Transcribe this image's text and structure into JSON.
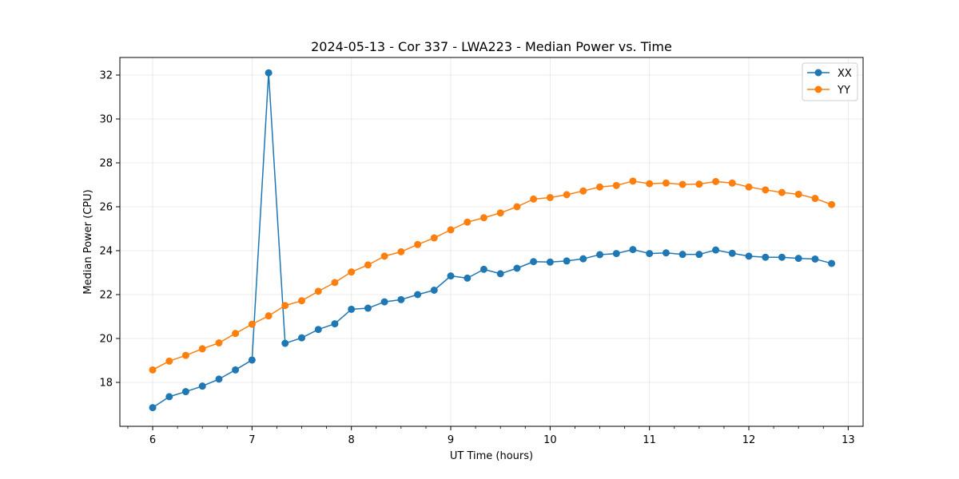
{
  "chart_data": {
    "type": "line",
    "title": "2024-05-13 - Cor 337 - LWA223 - Median Power vs. Time",
    "xlabel": "UT Time (hours)",
    "ylabel": "Median Power (CPU)",
    "xlim": [
      5.67,
      13.15
    ],
    "ylim": [
      16.0,
      32.8
    ],
    "xticks": [
      6,
      7,
      8,
      9,
      10,
      11,
      12,
      13
    ],
    "yticks": [
      18,
      20,
      22,
      24,
      26,
      28,
      30,
      32
    ],
    "x_minor_step": 0.25,
    "grid": true,
    "legend_position": "top-right",
    "x": [
      6.0,
      6.167,
      6.333,
      6.5,
      6.667,
      6.833,
      7.0,
      7.167,
      7.333,
      7.5,
      7.667,
      7.833,
      8.0,
      8.167,
      8.333,
      8.5,
      8.667,
      8.833,
      9.0,
      9.167,
      9.333,
      9.5,
      9.667,
      9.833,
      10.0,
      10.167,
      10.333,
      10.5,
      10.667,
      10.833,
      11.0,
      11.167,
      11.333,
      11.5,
      11.667,
      11.833,
      12.0,
      12.167,
      12.333,
      12.5,
      12.667,
      12.833
    ],
    "series": [
      {
        "name": "XX",
        "color": "#1f77b4",
        "values": [
          16.85,
          17.35,
          17.58,
          17.83,
          18.15,
          18.57,
          19.02,
          32.1,
          19.78,
          20.03,
          20.41,
          20.67,
          21.33,
          21.38,
          21.67,
          21.77,
          22.0,
          22.2,
          22.85,
          22.75,
          23.15,
          22.95,
          23.2,
          23.5,
          23.48,
          23.53,
          23.63,
          23.82,
          23.87,
          24.05,
          23.87,
          23.9,
          23.83,
          23.83,
          24.03,
          23.88,
          23.75,
          23.7,
          23.7,
          23.65,
          23.62,
          23.42
        ]
      },
      {
        "name": "YY",
        "color": "#ff7f0e",
        "values": [
          18.57,
          18.97,
          19.23,
          19.53,
          19.8,
          20.23,
          20.65,
          21.03,
          21.5,
          21.72,
          22.15,
          22.55,
          23.03,
          23.35,
          23.75,
          23.95,
          24.28,
          24.58,
          24.95,
          25.3,
          25.5,
          25.72,
          26.0,
          26.35,
          26.42,
          26.55,
          26.72,
          26.9,
          26.97,
          27.17,
          27.05,
          27.08,
          27.02,
          27.03,
          27.15,
          27.08,
          26.9,
          26.77,
          26.65,
          26.57,
          26.38,
          26.1
        ]
      }
    ]
  }
}
